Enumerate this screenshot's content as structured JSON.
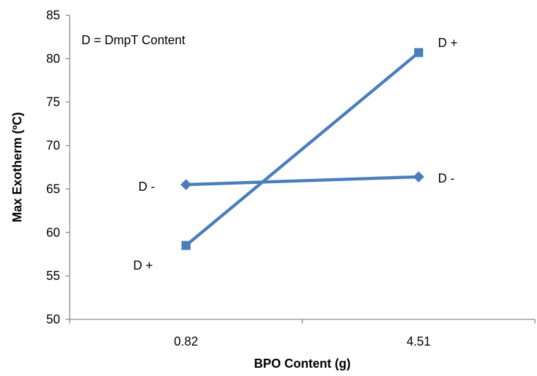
{
  "chart_data": {
    "type": "line",
    "categories": [
      "0.82",
      "4.51"
    ],
    "series": [
      {
        "values": [
          65.5,
          66.4
        ],
        "color": "#4a7ebb",
        "marker": "diamond",
        "labels": [
          "D -",
          "D -"
        ]
      },
      {
        "values": [
          58.5,
          80.7
        ],
        "color": "#4a7ebb",
        "marker": "square",
        "labels": [
          "D +",
          "D +"
        ]
      }
    ],
    "xlabel": "BPO Content (g)",
    "ylabel": "Max Exotherm (ºC)",
    "ylim": [
      50,
      85
    ],
    "yticks": [
      50,
      55,
      60,
      65,
      70,
      75,
      80,
      85
    ],
    "annotation": "D = DmpT Content",
    "grid": false
  }
}
